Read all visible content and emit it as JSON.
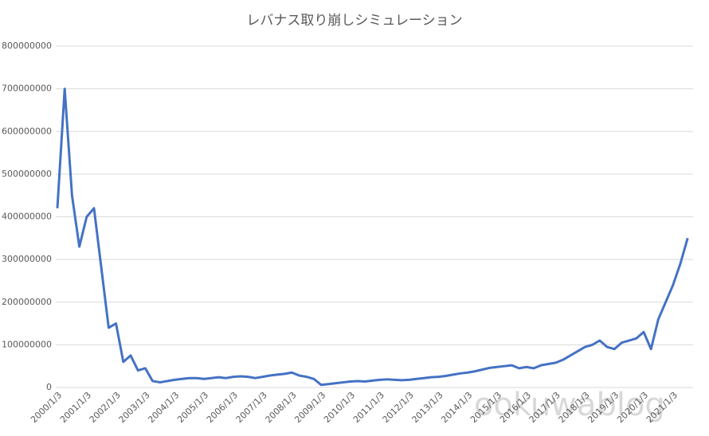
{
  "chart_data": {
    "type": "line",
    "title": "レバナス取り崩しシミュレーション",
    "categories": [
      "2000/1/3",
      null,
      null,
      null,
      "2001/1/3",
      null,
      null,
      null,
      "2002/1/3",
      null,
      null,
      null,
      "2003/1/3",
      null,
      null,
      null,
      "2004/1/3",
      null,
      null,
      null,
      "2005/1/3",
      null,
      null,
      null,
      "2006/1/3",
      null,
      null,
      null,
      "2007/1/3",
      null,
      null,
      null,
      "2008/1/3",
      null,
      null,
      null,
      "2009/1/3",
      null,
      null,
      null,
      "2010/1/3",
      null,
      null,
      null,
      "2011/1/3",
      null,
      null,
      null,
      "2012/1/3",
      null,
      null,
      null,
      "2013/1/3",
      null,
      null,
      null,
      "2014/1/3",
      null,
      null,
      null,
      "2015/1/3",
      null,
      null,
      null,
      "2016/1/3",
      null,
      null,
      null,
      "2017/1/3",
      null,
      null,
      null,
      "2018/1/3",
      null,
      null,
      null,
      "2019/1/3",
      null,
      null,
      null,
      "2020/1/3",
      null,
      null,
      null,
      "2021/1/3",
      null,
      null
    ],
    "series": [
      {
        "color": "#4472c4",
        "values": [
          420000000,
          700000000,
          450000000,
          330000000,
          400000000,
          420000000,
          280000000,
          140000000,
          150000000,
          60000000,
          75000000,
          40000000,
          45000000,
          15000000,
          12000000,
          15000000,
          18000000,
          20000000,
          22000000,
          22000000,
          20000000,
          22000000,
          24000000,
          22000000,
          25000000,
          26000000,
          25000000,
          22000000,
          25000000,
          28000000,
          30000000,
          32000000,
          35000000,
          28000000,
          25000000,
          20000000,
          6000000,
          8000000,
          10000000,
          12000000,
          14000000,
          15000000,
          14000000,
          16000000,
          18000000,
          19000000,
          18000000,
          17000000,
          18000000,
          20000000,
          22000000,
          24000000,
          25000000,
          27000000,
          30000000,
          33000000,
          35000000,
          38000000,
          42000000,
          46000000,
          48000000,
          50000000,
          52000000,
          45000000,
          48000000,
          45000000,
          52000000,
          55000000,
          58000000,
          65000000,
          75000000,
          85000000,
          95000000,
          100000000,
          110000000,
          95000000,
          90000000,
          105000000,
          110000000,
          115000000,
          130000000,
          90000000,
          160000000,
          200000000,
          240000000,
          290000000,
          350000000
        ]
      }
    ],
    "ylim": [
      0,
      800000000
    ],
    "yticks": [
      0,
      100000000,
      200000000,
      300000000,
      400000000,
      500000000,
      600000000,
      700000000,
      800000000
    ],
    "grid": true,
    "watermark": "ookuwablog"
  }
}
